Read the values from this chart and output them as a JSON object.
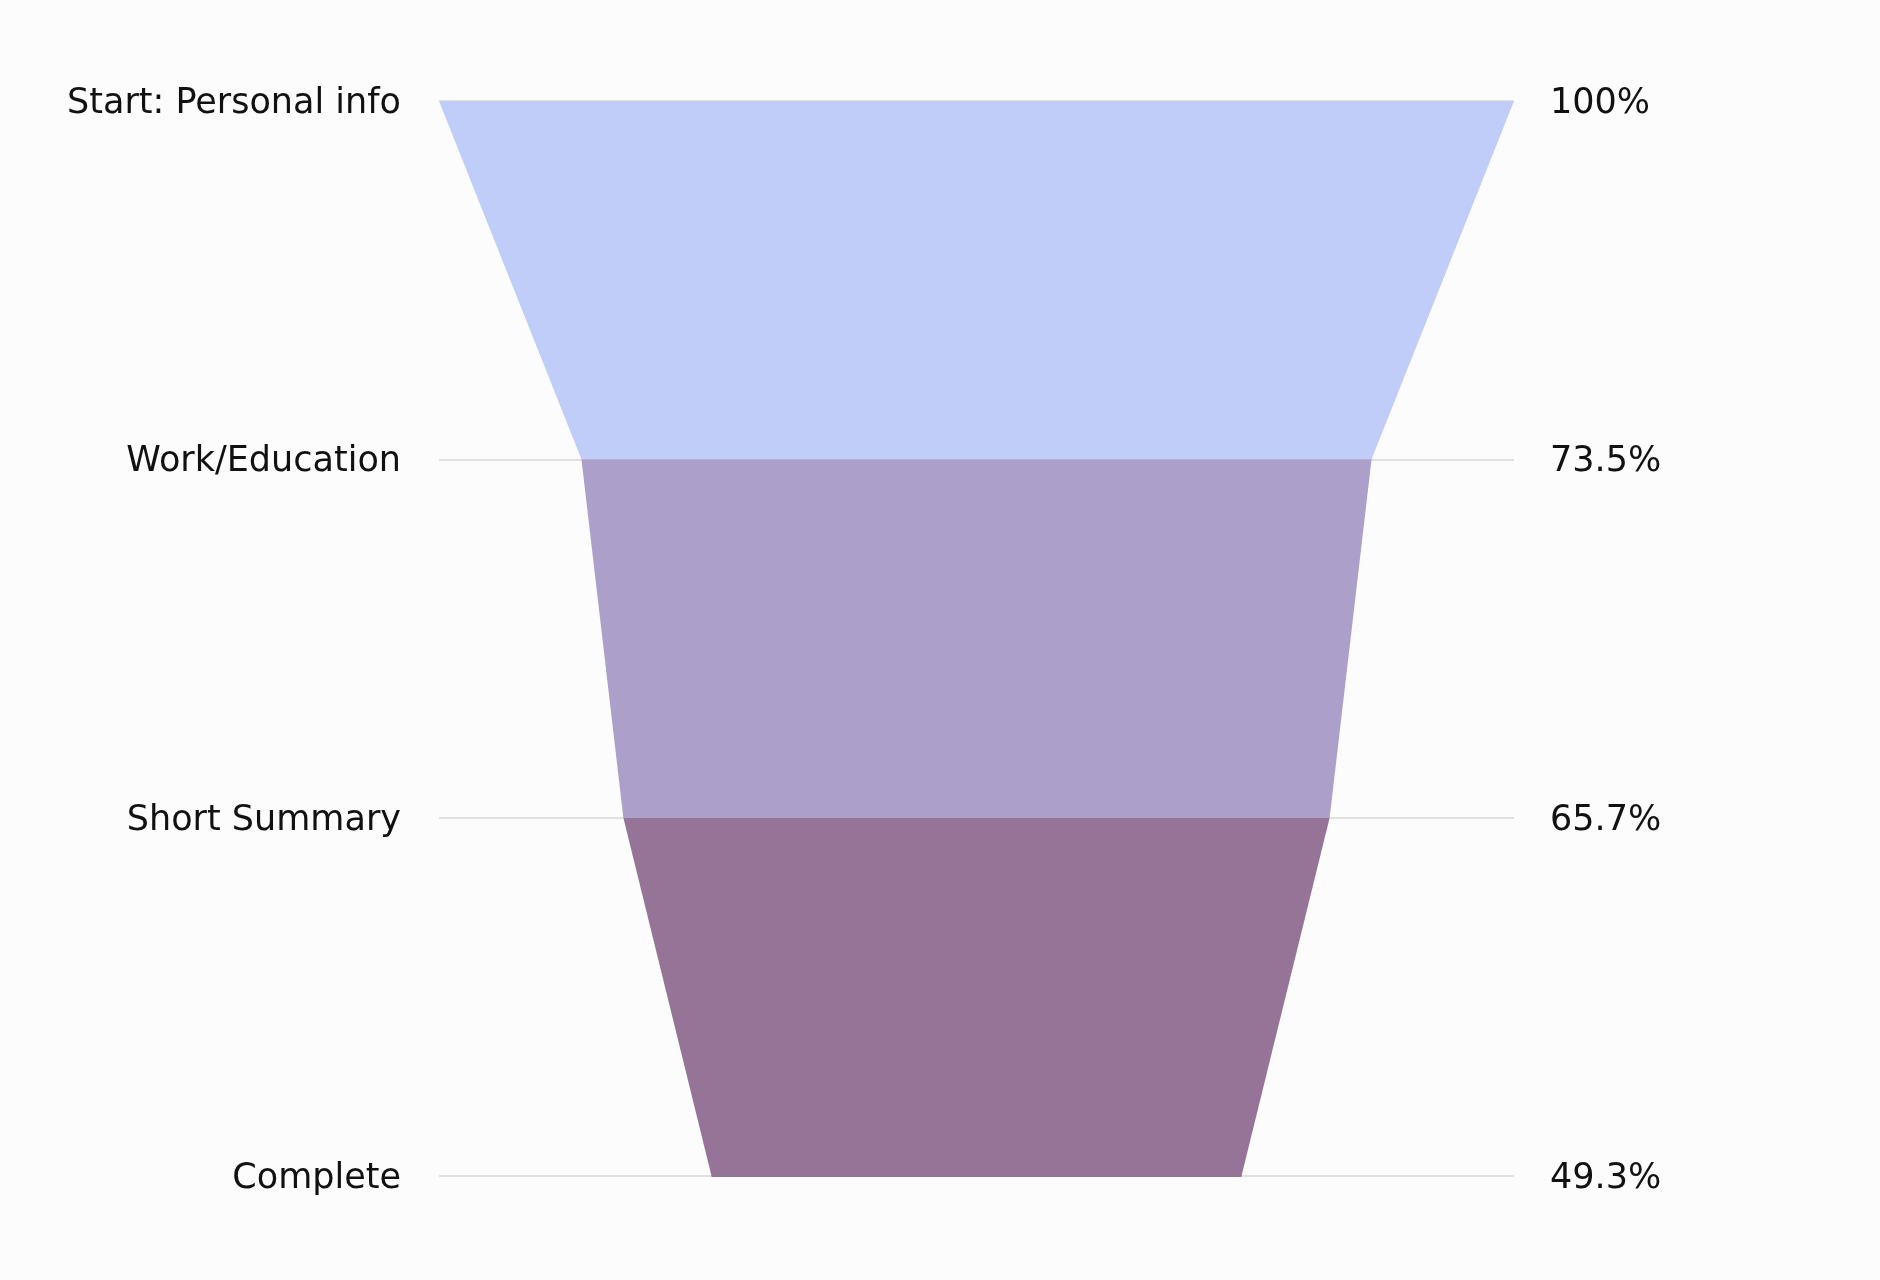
{
  "chart_data": {
    "type": "other",
    "categories": [
      "Start: Personal info",
      "Work/Education",
      "Short Summary",
      "Complete"
    ],
    "values": [
      100,
      73.5,
      65.7,
      49.3
    ],
    "value_labels": [
      "100%",
      "73.5%",
      "65.7%",
      "49.3%"
    ],
    "colors": [
      "#c0cdf8",
      "#ac9fca",
      "#957498",
      "#957498"
    ]
  }
}
